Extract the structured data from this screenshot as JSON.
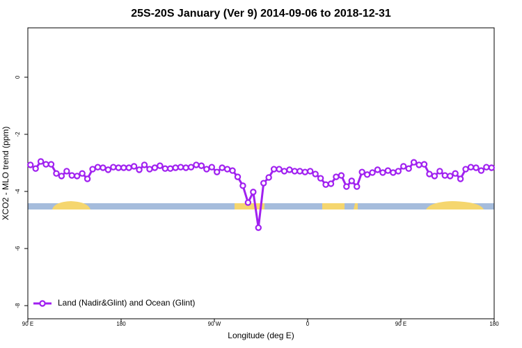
{
  "chart_data": {
    "type": "line",
    "title": "25S-20S January (Ver 9)   2014-09-06 to 2018-12-31",
    "x_label": "Longitude (deg E)",
    "y_label": "XCO2 - MLO trend (ppm)",
    "x": [
      92.5,
      97.5,
      102.5,
      107.5,
      112.5,
      117.5,
      122.5,
      127.5,
      132.5,
      137.5,
      142.5,
      147.5,
      152.5,
      157.5,
      162.5,
      167.5,
      172.5,
      177.5,
      182.5,
      187.5,
      192.5,
      197.5,
      202.5,
      207.5,
      212.5,
      217.5,
      222.5,
      227.5,
      232.5,
      237.5,
      242.5,
      247.5,
      252.5,
      257.5,
      262.5,
      267.5,
      272.5,
      277.5,
      282.5,
      287.5,
      292.5,
      297.5,
      302.5,
      307.5,
      312.5,
      317.5,
      322.5,
      327.5,
      332.5,
      337.5,
      342.5,
      347.5,
      352.5,
      357.5,
      362.5,
      367.5,
      372.5,
      377.5,
      382.5,
      387.5,
      392.5,
      397.5,
      402.5,
      407.5,
      412.5,
      417.5,
      422.5,
      427.5,
      432.5,
      437.5,
      442.5,
      447.5,
      452.5,
      457.5,
      462.5,
      467.5,
      472.5,
      477.5,
      482.5,
      487.5,
      492.5,
      497.5,
      502.5,
      507.5,
      512.5,
      517.5,
      522.5,
      527.5,
      532.5,
      537.5
    ],
    "series": [
      {
        "name": "Land (Nadir&Glint) and Ocean (Glint)",
        "color": "#a020f0",
        "values": [
          -3.07,
          -3.2,
          -2.95,
          -3.05,
          -3.05,
          -3.37,
          -3.46,
          -3.29,
          -3.44,
          -3.46,
          -3.37,
          -3.56,
          -3.22,
          -3.15,
          -3.17,
          -3.24,
          -3.15,
          -3.17,
          -3.17,
          -3.17,
          -3.12,
          -3.24,
          -3.07,
          -3.22,
          -3.17,
          -3.1,
          -3.2,
          -3.2,
          -3.17,
          -3.15,
          -3.17,
          -3.15,
          -3.07,
          -3.1,
          -3.22,
          -3.15,
          -3.32,
          -3.17,
          -3.22,
          -3.27,
          -3.49,
          -3.8,
          -4.39,
          -4.02,
          -5.27,
          -3.71,
          -3.51,
          -3.22,
          -3.22,
          -3.29,
          -3.24,
          -3.29,
          -3.29,
          -3.32,
          -3.29,
          -3.39,
          -3.54,
          -3.76,
          -3.73,
          -3.49,
          -3.44,
          -3.83,
          -3.63,
          -3.83,
          -3.32,
          -3.41,
          -3.34,
          -3.24,
          -3.34,
          -3.27,
          -3.34,
          -3.29,
          -3.12,
          -3.2,
          -2.98,
          -3.07,
          -3.05,
          -3.39,
          -3.46,
          -3.29,
          -3.44,
          -3.46,
          -3.37,
          -3.56,
          -3.22,
          -3.15,
          -3.17,
          -3.27,
          -3.15,
          -3.17
        ]
      }
    ],
    "xlim": [
      90,
      540
    ],
    "xticks": [
      {
        "value": 90,
        "label": "90 E"
      },
      {
        "value": 180,
        "label": "180"
      },
      {
        "value": 270,
        "label": "90 W"
      },
      {
        "value": 360,
        "label": "0"
      },
      {
        "value": 450,
        "label": "90 E"
      },
      {
        "value": 540,
        "label": "180"
      }
    ],
    "ylim": [
      -8.46,
      1.73
    ],
    "yticks": [
      0,
      -2,
      -4,
      -6,
      -8
    ],
    "legend": "bottom-left"
  }
}
